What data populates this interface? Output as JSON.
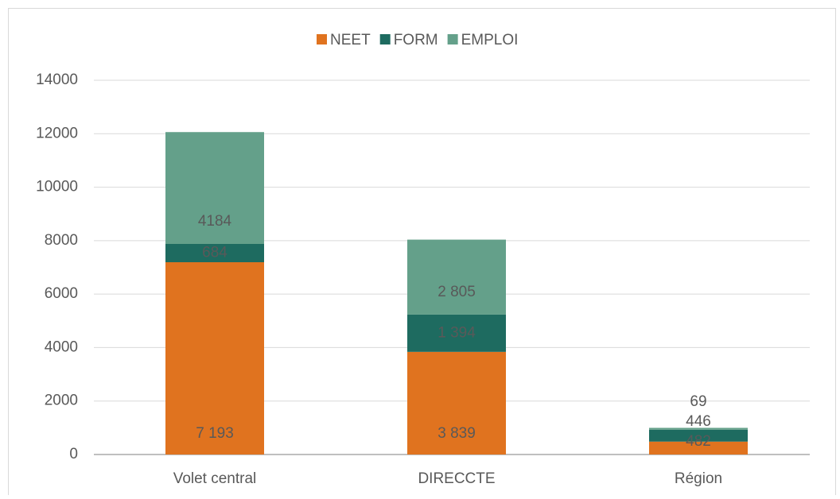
{
  "chart_data": {
    "type": "stacked_bar",
    "categories": [
      "Volet central",
      "DIRECCTE",
      "Région"
    ],
    "series": [
      {
        "name": "NEET",
        "color": "#e0731f",
        "values": [
          7193,
          3839,
          482
        ],
        "value_labels": [
          "7 193",
          "3 839",
          "482"
        ]
      },
      {
        "name": "FORM",
        "color": "#1e6b60",
        "values": [
          684,
          1394,
          446
        ],
        "value_labels": [
          "684",
          "1 394",
          "446"
        ]
      },
      {
        "name": "EMPLOI",
        "color": "#64a08a",
        "values": [
          4184,
          2805,
          69
        ],
        "value_labels": [
          "4184",
          "2 805",
          "69"
        ]
      }
    ],
    "ylim": [
      0,
      14000
    ],
    "yticks": [
      0,
      2000,
      4000,
      6000,
      8000,
      10000,
      12000,
      14000
    ],
    "grid": true,
    "legend": "top"
  }
}
